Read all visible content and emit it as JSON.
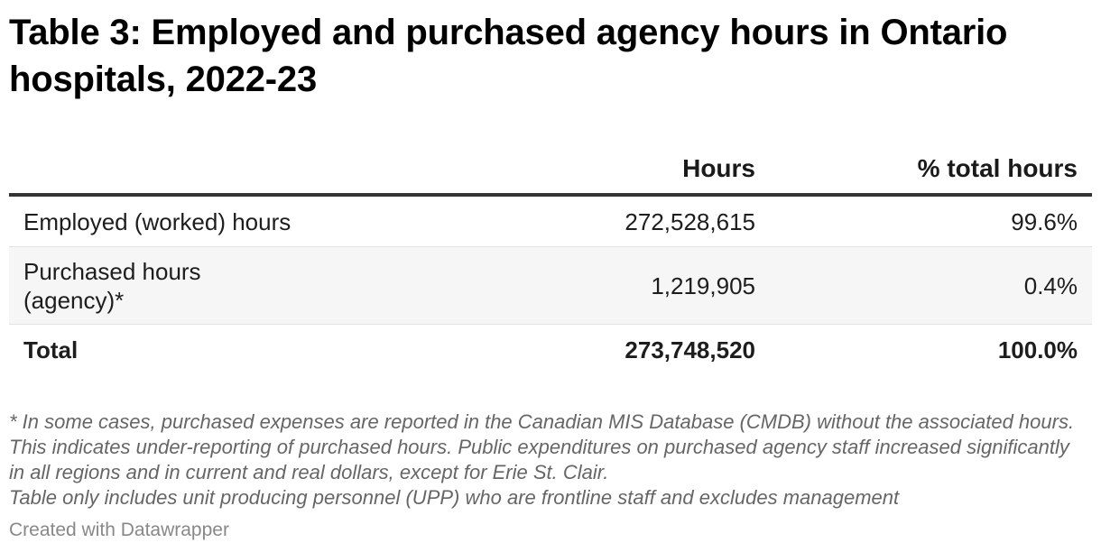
{
  "title": "Table 3: Employed and purchased agency hours in Ontario hospitals, 2022-23",
  "table": {
    "headers": {
      "label": "",
      "hours": "Hours",
      "pct": "% total hours"
    },
    "rows": [
      {
        "label": "Employed (worked) hours",
        "hours": "272,528,615",
        "pct": "99.6%"
      },
      {
        "label_line1": "Purchased hours",
        "label_line2": "(agency)*",
        "hours": "1,219,905",
        "pct": "0.4%"
      },
      {
        "label": "Total",
        "hours": "273,748,520",
        "pct": "100.0%"
      }
    ]
  },
  "notes": {
    "line1": "* In some cases, purchased expenses are reported in the Canadian MIS Database (CMDB) without the associated hours. This indicates under-reporting of purchased hours. Public expenditures on purchased agency staff increased significantly in all regions and in current and real dollars, except for Erie St. Clair.",
    "line2": "Table only includes unit producing personnel (UPP) who are frontline staff and excludes management"
  },
  "credit": "Created with Datawrapper"
}
